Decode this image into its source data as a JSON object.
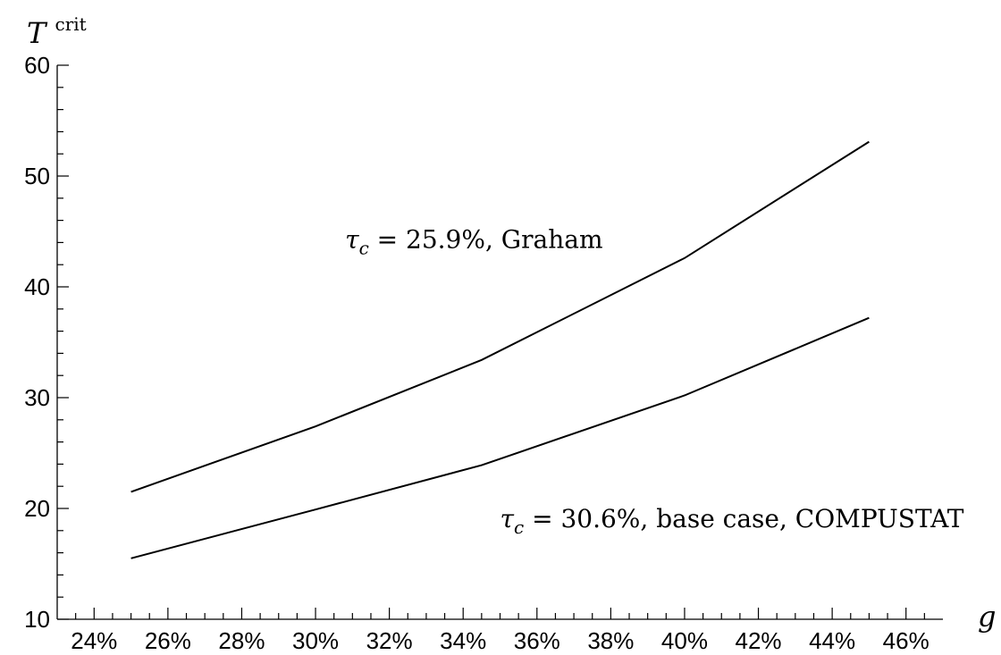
{
  "chart_data": {
    "type": "line",
    "xlabel": "g",
    "ylabel_base": "T",
    "ylabel_sup": "crit",
    "xlim": [
      0.23,
      0.47
    ],
    "ylim": [
      10,
      60
    ],
    "x_ticks": [
      0.24,
      0.26,
      0.28,
      0.3,
      0.32,
      0.34,
      0.36,
      0.38,
      0.4,
      0.42,
      0.44,
      0.46
    ],
    "x_tick_labels": [
      "24%",
      "26%",
      "28%",
      "30%",
      "32%",
      "34%",
      "36%",
      "38%",
      "40%",
      "42%",
      "44%",
      "46%"
    ],
    "y_ticks": [
      10,
      20,
      30,
      40,
      50,
      60
    ],
    "y_tick_labels": [
      "10",
      "20",
      "30",
      "40",
      "50",
      "60"
    ],
    "grid": false,
    "series": [
      {
        "x": [
          0.25,
          0.3,
          0.345,
          0.4,
          0.45
        ],
        "y": [
          21.5,
          27.4,
          33.4,
          42.6,
          53.1
        ]
      },
      {
        "x": [
          0.25,
          0.3,
          0.345,
          0.4,
          0.45
        ],
        "y": [
          15.5,
          19.9,
          23.9,
          30.2,
          37.2
        ]
      }
    ],
    "annotations": [
      {
        "tau_sub": "c",
        "text": " = 25.9%, Graham",
        "x": 0.308,
        "y": 43.5
      },
      {
        "tau_sub": "c",
        "text": " = 30.6%, base case, COMPUSTAT",
        "x": 0.35,
        "y": 18.3
      }
    ]
  }
}
